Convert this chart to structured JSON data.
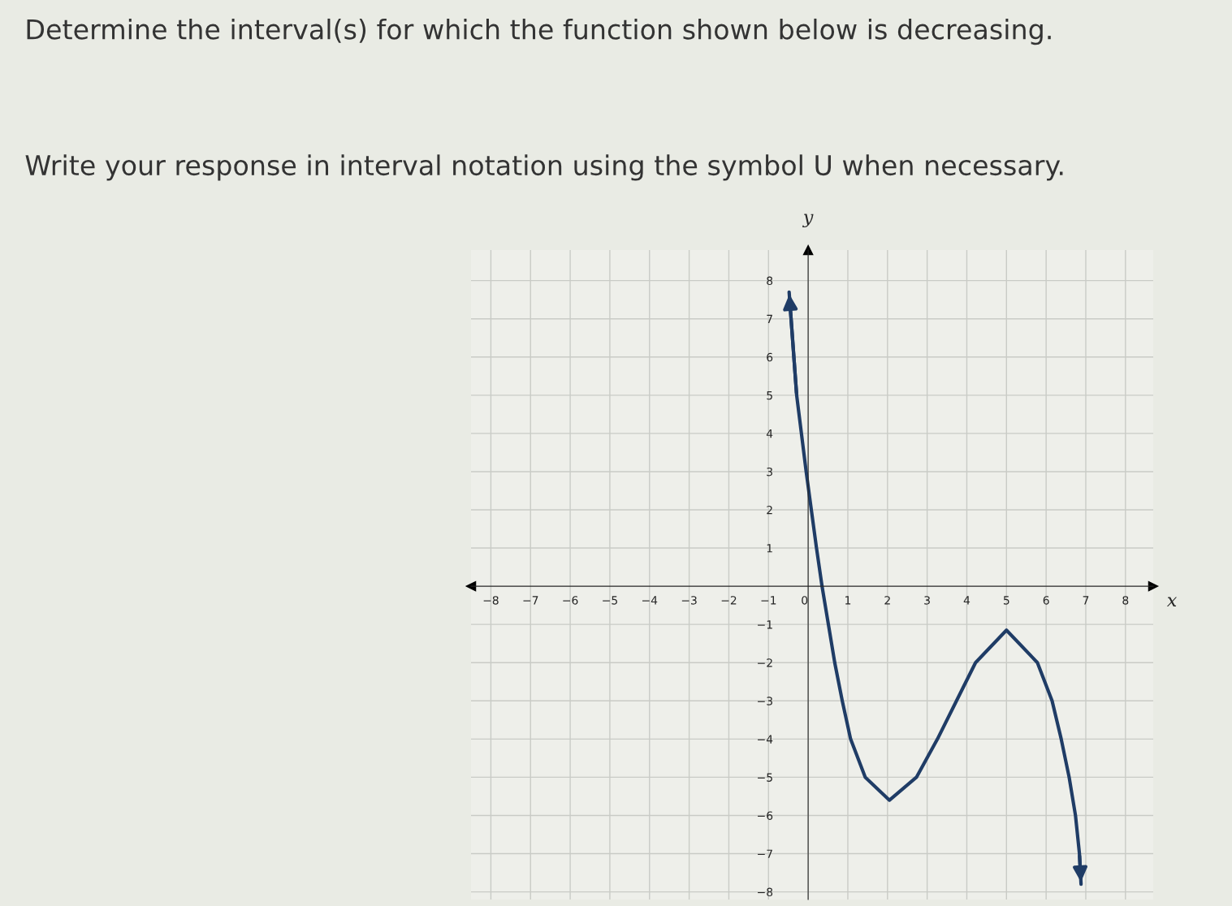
{
  "chart_data": {
    "type": "line",
    "title": "Determine the interval(s) for which the function shown below is decreasing.",
    "subtitle": "Write your response in interval notation using the symbol U when necessary.",
    "xlabel": "x",
    "ylabel": "y",
    "x": [
      -0.48,
      -0.29,
      -0.05,
      0.21,
      0.35,
      0.51,
      0.67,
      0.86,
      1.07,
      1.44,
      2.05,
      2.73,
      3.26,
      3.74,
      4.22,
      5.0,
      5.78,
      6.15,
      6.38,
      6.58,
      6.74,
      6.84,
      6.88
    ],
    "series": [
      {
        "color": "#1f3c66",
        "values": [
          7.7,
          5,
          3,
          1,
          0,
          -1,
          -2,
          -3,
          -4,
          -5,
          -5.6,
          -5,
          -4,
          -3,
          -2,
          -1.15,
          -2,
          -3,
          -4,
          -5,
          -6,
          -7,
          -7.8
        ]
      }
    ],
    "xlim": [
      -8.5,
      8.7
    ],
    "ylim": [
      -8.2,
      8.8
    ],
    "xticks": [
      -8,
      -7,
      -6,
      -5,
      -4,
      -3,
      -2,
      -1,
      0,
      1,
      2,
      3,
      4,
      5,
      6,
      7,
      8
    ],
    "yticks": [
      -8,
      -7,
      -6,
      -5,
      -4,
      -3,
      -2,
      -1,
      1,
      2,
      3,
      4,
      5,
      6,
      7,
      8
    ],
    "grid": true,
    "marker": "none",
    "line_style": "solid"
  }
}
